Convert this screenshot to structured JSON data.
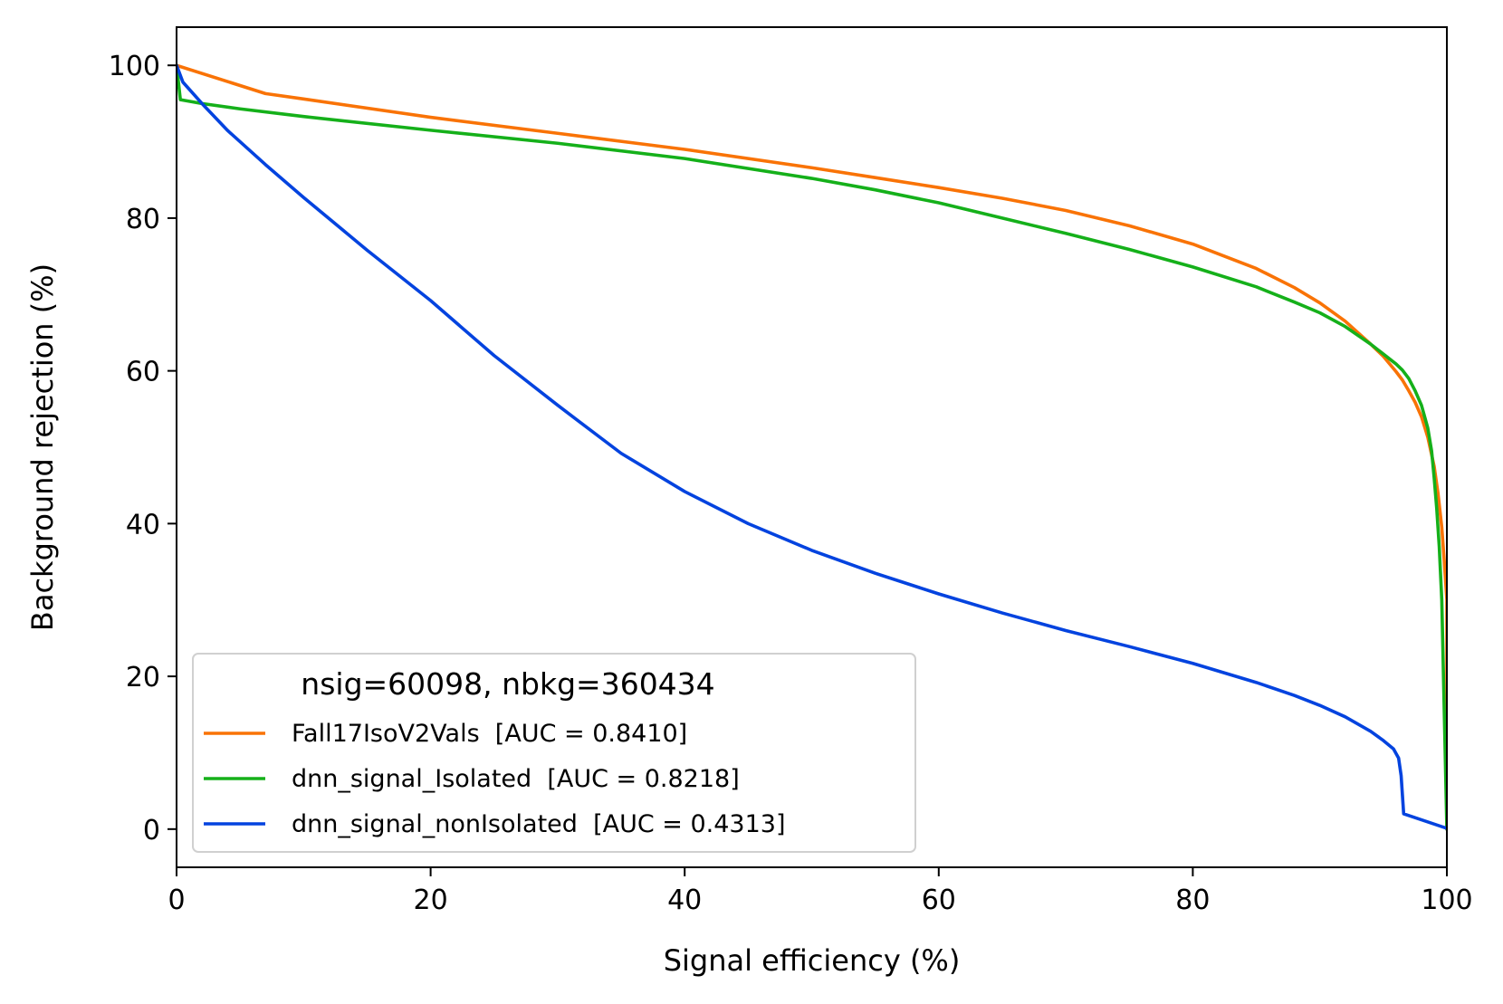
{
  "chart_data": {
    "type": "line",
    "title": "",
    "xlabel": "Signal efficiency (%)",
    "ylabel": "Background rejection (%)",
    "xlim": [
      0,
      100
    ],
    "ylim": [
      -5,
      105
    ],
    "xticks": [
      0,
      20,
      40,
      60,
      80,
      100
    ],
    "yticks": [
      0,
      20,
      40,
      60,
      80,
      100
    ],
    "grid": false,
    "legend": {
      "placement": "lower-left",
      "title": "nsig=60098, nbkg=360434"
    },
    "series": [
      {
        "name": "Fall17IsoV2Vals  [AUC = 0.8410]",
        "color": "#f97306",
        "x": [
          0,
          7,
          10,
          20,
          30,
          40,
          50,
          55,
          60,
          65,
          70,
          75,
          80,
          85,
          88,
          90,
          92,
          93,
          94,
          95,
          96,
          96.5,
          97,
          97.5,
          98,
          98.5,
          99,
          99.3,
          99.6,
          99.8,
          100,
          100
        ],
        "y": [
          100,
          96.3,
          95.6,
          93.2,
          91.1,
          89.0,
          86.6,
          85.3,
          84.0,
          82.6,
          81.0,
          79.0,
          76.6,
          73.4,
          70.9,
          68.9,
          66.5,
          65.0,
          63.5,
          61.9,
          59.9,
          58.8,
          57.4,
          55.9,
          54.0,
          51.3,
          47.5,
          44.0,
          39.5,
          35.0,
          30.0,
          0
        ]
      },
      {
        "name": "dnn_signal_Isolated  [AUC = 0.8218]",
        "color": "#15b01a",
        "x": [
          0,
          0.3,
          2,
          5,
          10,
          20,
          30,
          40,
          50,
          55,
          60,
          65,
          70,
          75,
          80,
          85,
          88,
          90,
          92,
          94,
          95,
          96,
          96.5,
          97,
          97.5,
          98,
          98.5,
          98.8,
          99.0,
          99.2,
          99.4,
          99.6,
          99.8,
          100
        ],
        "y": [
          100,
          95.5,
          95.0,
          94.3,
          93.3,
          91.5,
          89.8,
          87.8,
          85.2,
          83.7,
          82.0,
          80.0,
          78.0,
          75.9,
          73.6,
          71.0,
          69.0,
          67.6,
          65.8,
          63.5,
          62.2,
          60.9,
          60.1,
          59.0,
          57.4,
          55.5,
          52.5,
          49.5,
          46.0,
          42.0,
          37.0,
          30.0,
          15.0,
          0
        ]
      },
      {
        "name": "dnn_signal_nonIsolated  [AUC = 0.4313]",
        "color": "#0343df",
        "x": [
          0,
          0.5,
          2,
          4,
          7,
          10,
          15,
          20,
          25,
          30,
          35,
          40,
          45,
          50,
          55,
          60,
          65,
          70,
          75,
          80,
          85,
          88,
          90,
          92,
          94,
          95,
          95.8,
          96.2,
          96.4,
          96.5,
          96.6,
          100
        ],
        "y": [
          100,
          97.8,
          95.0,
          91.5,
          87.0,
          82.7,
          75.8,
          69.2,
          62.0,
          55.5,
          49.2,
          44.2,
          40.0,
          36.5,
          33.5,
          30.8,
          28.3,
          26.0,
          23.9,
          21.7,
          19.2,
          17.5,
          16.2,
          14.7,
          12.8,
          11.6,
          10.5,
          9.3,
          7.0,
          4.5,
          2.0,
          0.1
        ]
      }
    ]
  }
}
